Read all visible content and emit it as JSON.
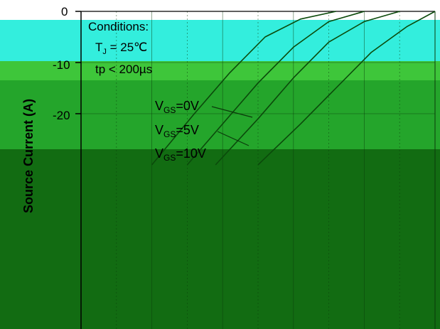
{
  "chart_data": {
    "type": "line",
    "ylabel": "Source Current (A)",
    "y_ticks": [
      0,
      -10,
      -20
    ],
    "ylim": [
      -30,
      0
    ],
    "grid": true,
    "conditions": {
      "heading": "Conditions:",
      "tj_symbol": "T",
      "tj_sub": "J",
      "tj_value": " = 25℃",
      "tp": "tp < 200µs"
    },
    "curve_labels": [
      {
        "v": "V",
        "sub": "GS",
        "rest": "=0V"
      },
      {
        "v": "V",
        "sub": "GS",
        "rest": "=5V"
      },
      {
        "v": "V",
        "sub": "GS",
        "rest": "=10V"
      }
    ],
    "series": [
      {
        "x": [
          0.5,
          0.62,
          0.72,
          0.82,
          0.92,
          1.0
        ],
        "y": [
          -30,
          -22,
          -15,
          -8,
          -3,
          0
        ]
      },
      {
        "x": [
          0.38,
          0.5,
          0.6,
          0.7,
          0.8,
          0.9
        ],
        "y": [
          -30,
          -21,
          -13,
          -6,
          -2,
          0
        ]
      },
      {
        "x": [
          0.3,
          0.4,
          0.5,
          0.6,
          0.7,
          0.8
        ],
        "y": [
          -30,
          -22,
          -14,
          -7,
          -2,
          0
        ]
      },
      {
        "x": [
          0.2,
          0.32,
          0.42,
          0.52,
          0.62,
          0.72
        ],
        "y": [
          -30,
          -20,
          -12,
          -5,
          -1.5,
          0
        ]
      }
    ]
  },
  "colors": {
    "band_cyan": "#33eedd",
    "band_lime": "#33bb33",
    "band_green_mid": "#23a02a",
    "band_green_dark": "#176b16",
    "curve": "#0b4a0b",
    "grid": "#0a3a0a"
  }
}
